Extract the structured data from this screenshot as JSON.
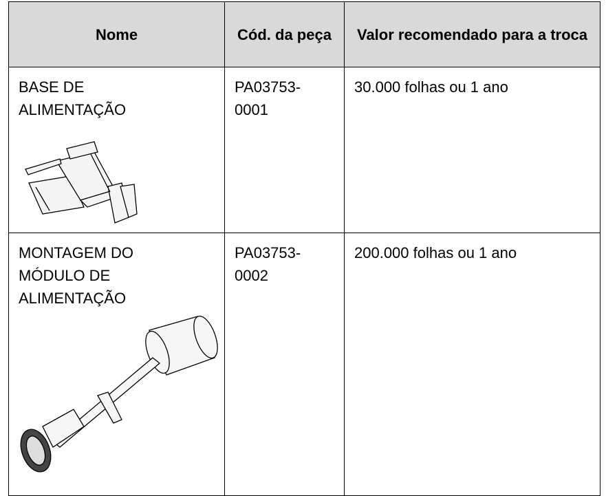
{
  "table": {
    "headers": [
      "Nome",
      "Cód. da peça",
      "Valor recomendado para a troca"
    ],
    "rows": [
      [
        "BASE DE ALIMENTAÇÃO",
        "PA03753-0001",
        "30.000 folhas ou 1 ano"
      ],
      [
        "MONTAGEM DO MÓDULO DE ALIMENTAÇÃO",
        "PA03753-0002",
        "200.000 folhas ou 1 ano"
      ]
    ]
  }
}
